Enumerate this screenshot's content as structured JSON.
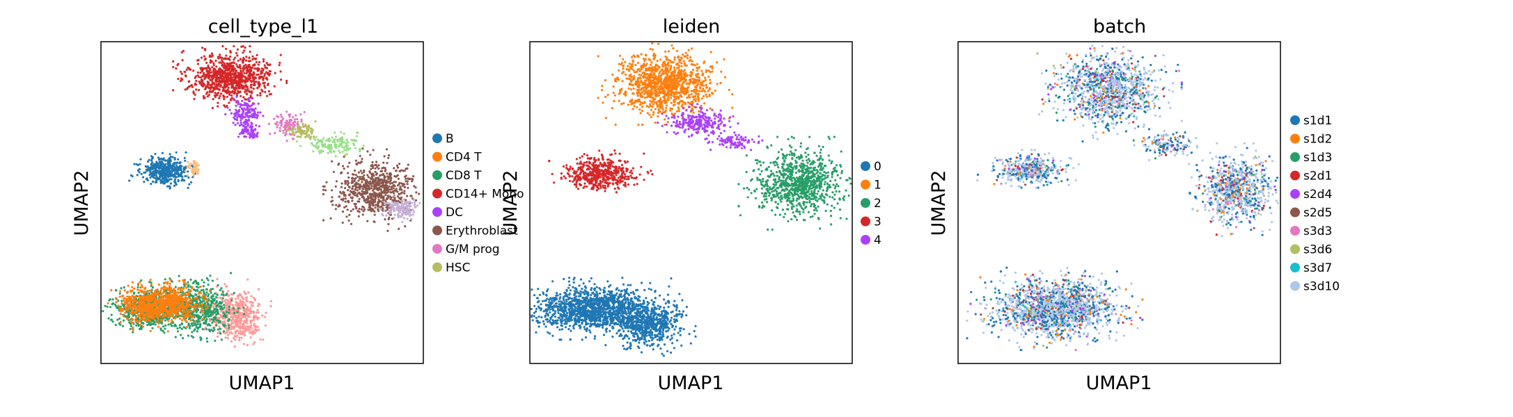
{
  "chart_data": [
    {
      "type": "scatter",
      "title": "cell_type_l1",
      "xlabel": "UMAP1",
      "ylabel": "UMAP2",
      "grid": false,
      "legend_position": "right",
      "legend": [
        {
          "name": "B",
          "color": "#1f77b4"
        },
        {
          "name": "CD4 T",
          "color": "#ff7f0e"
        },
        {
          "name": "CD8 T",
          "color": "#279e68"
        },
        {
          "name": "CD14+ Mono",
          "color": "#d62728"
        },
        {
          "name": "DC",
          "color": "#aa40fc"
        },
        {
          "name": "Erythroblast",
          "color": "#8c564b"
        },
        {
          "name": "G/M prog",
          "color": "#e377c2"
        },
        {
          "name": "HSC",
          "color": "#b5bd61"
        }
      ],
      "extra_colors": [
        "#aec7e8",
        "#98df8a",
        "#ff9896",
        "#c5b0d5"
      ],
      "clusters": [
        {
          "c": "#ff9896",
          "x": 0.42,
          "y": 0.85,
          "rx": 0.07,
          "ry": 0.07,
          "n": 500
        },
        {
          "c": "#279e68",
          "x": 0.15,
          "y": 0.83,
          "rx": 0.09,
          "ry": 0.055,
          "n": 600
        },
        {
          "c": "#279e68",
          "x": 0.3,
          "y": 0.83,
          "rx": 0.09,
          "ry": 0.07,
          "n": 600
        },
        {
          "c": "#ff7f0e",
          "x": 0.15,
          "y": 0.82,
          "rx": 0.08,
          "ry": 0.05,
          "n": 600
        },
        {
          "c": "#ff7f0e",
          "x": 0.24,
          "y": 0.81,
          "rx": 0.07,
          "ry": 0.05,
          "n": 300
        },
        {
          "c": "#1f77b4",
          "x": 0.2,
          "y": 0.4,
          "rx": 0.07,
          "ry": 0.035,
          "n": 450
        },
        {
          "c": "#ffbb78",
          "x": 0.29,
          "y": 0.39,
          "rx": 0.02,
          "ry": 0.02,
          "n": 50
        },
        {
          "c": "#d62728",
          "x": 0.4,
          "y": 0.11,
          "rx": 0.11,
          "ry": 0.06,
          "n": 900
        },
        {
          "c": "#aa40fc",
          "x": 0.45,
          "y": 0.22,
          "rx": 0.04,
          "ry": 0.04,
          "n": 150
        },
        {
          "c": "#aa40fc",
          "x": 0.46,
          "y": 0.28,
          "rx": 0.03,
          "ry": 0.02,
          "n": 70
        },
        {
          "c": "#e377c2",
          "x": 0.58,
          "y": 0.26,
          "rx": 0.04,
          "ry": 0.03,
          "n": 100
        },
        {
          "c": "#b5bd61",
          "x": 0.63,
          "y": 0.28,
          "rx": 0.04,
          "ry": 0.02,
          "n": 80
        },
        {
          "c": "#98df8a",
          "x": 0.72,
          "y": 0.32,
          "rx": 0.07,
          "ry": 0.025,
          "n": 150
        },
        {
          "c": "#8c564b",
          "x": 0.85,
          "y": 0.46,
          "rx": 0.1,
          "ry": 0.08,
          "n": 700
        },
        {
          "c": "#c5b0d5",
          "x": 0.93,
          "y": 0.52,
          "rx": 0.05,
          "ry": 0.025,
          "n": 150
        }
      ]
    },
    {
      "type": "scatter",
      "title": "leiden",
      "xlabel": "UMAP1",
      "ylabel": "UMAP2",
      "grid": false,
      "legend_position": "right",
      "legend": [
        {
          "name": "0",
          "color": "#1f77b4"
        },
        {
          "name": "1",
          "color": "#ff7f0e"
        },
        {
          "name": "2",
          "color": "#279e68"
        },
        {
          "name": "3",
          "color": "#d62728"
        },
        {
          "name": "4",
          "color": "#aa40fc"
        }
      ],
      "clusters": [
        {
          "c": "#1f77b4",
          "x": 0.2,
          "y": 0.83,
          "rx": 0.16,
          "ry": 0.06,
          "n": 1400
        },
        {
          "c": "#1f77b4",
          "x": 0.37,
          "y": 0.88,
          "rx": 0.09,
          "ry": 0.06,
          "n": 600
        },
        {
          "c": "#d62728",
          "x": 0.22,
          "y": 0.41,
          "rx": 0.1,
          "ry": 0.045,
          "n": 500
        },
        {
          "c": "#ff7f0e",
          "x": 0.42,
          "y": 0.13,
          "rx": 0.13,
          "ry": 0.08,
          "n": 1100
        },
        {
          "c": "#aa40fc",
          "x": 0.52,
          "y": 0.25,
          "rx": 0.08,
          "ry": 0.035,
          "n": 250
        },
        {
          "c": "#aa40fc",
          "x": 0.64,
          "y": 0.31,
          "rx": 0.06,
          "ry": 0.02,
          "n": 100
        },
        {
          "c": "#279e68",
          "x": 0.84,
          "y": 0.44,
          "rx": 0.12,
          "ry": 0.09,
          "n": 900
        }
      ]
    },
    {
      "type": "scatter",
      "title": "batch",
      "xlabel": "UMAP1",
      "ylabel": "UMAP2",
      "grid": false,
      "legend_position": "right",
      "legend": [
        {
          "name": "s1d1",
          "color": "#1f77b4"
        },
        {
          "name": "s1d2",
          "color": "#ff7f0e"
        },
        {
          "name": "s1d3",
          "color": "#279e68"
        },
        {
          "name": "s2d1",
          "color": "#d62728"
        },
        {
          "name": "s2d4",
          "color": "#aa40fc"
        },
        {
          "name": "s2d5",
          "color": "#8c564b"
        },
        {
          "name": "s3d3",
          "color": "#e377c2"
        },
        {
          "name": "s3d6",
          "color": "#b5bd61"
        },
        {
          "name": "s3d7",
          "color": "#17becf"
        },
        {
          "name": "s3d10",
          "color": "#aec7e8"
        }
      ],
      "clusters": [
        {
          "c": "mix",
          "x": 0.3,
          "y": 0.83,
          "rx": 0.17,
          "ry": 0.08,
          "n": 1600
        },
        {
          "c": "mix",
          "x": 0.22,
          "y": 0.4,
          "rx": 0.1,
          "ry": 0.04,
          "n": 400
        },
        {
          "c": "mix",
          "x": 0.47,
          "y": 0.15,
          "rx": 0.14,
          "ry": 0.1,
          "n": 1100
        },
        {
          "c": "mix",
          "x": 0.65,
          "y": 0.32,
          "rx": 0.08,
          "ry": 0.03,
          "n": 150
        },
        {
          "c": "mix",
          "x": 0.86,
          "y": 0.46,
          "rx": 0.1,
          "ry": 0.09,
          "n": 800
        }
      ]
    }
  ]
}
